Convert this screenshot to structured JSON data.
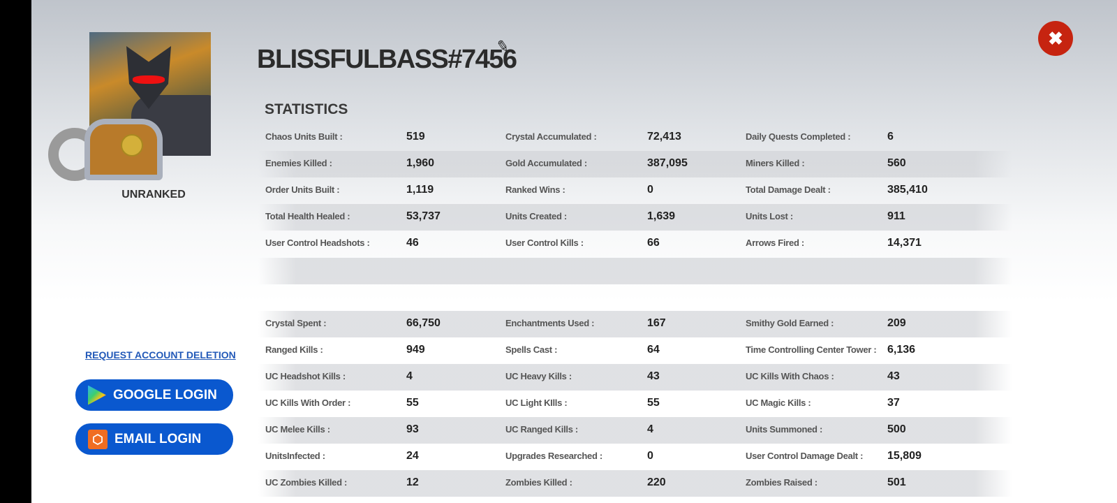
{
  "profile": {
    "name": "BLISSFULBASS#7456",
    "rank": "UNRANKED"
  },
  "statistics_heading": "STATISTICS",
  "section1": [
    [
      [
        "Chaos Units Built :",
        "519"
      ],
      [
        "Crystal Accumulated :",
        "72,413"
      ],
      [
        "Daily Quests Completed :",
        "6"
      ]
    ],
    [
      [
        "Enemies Killed :",
        "1,960"
      ],
      [
        "Gold Accumulated :",
        "387,095"
      ],
      [
        "Miners Killed :",
        "560"
      ]
    ],
    [
      [
        "Order Units Built :",
        "1,119"
      ],
      [
        "Ranked Wins :",
        "0"
      ],
      [
        "Total Damage Dealt :",
        "385,410"
      ]
    ],
    [
      [
        "Total Health Healed :",
        "53,737"
      ],
      [
        "Units Created :",
        "1,639"
      ],
      [
        "Units Lost :",
        "911"
      ]
    ],
    [
      [
        "User Control Headshots :",
        "46"
      ],
      [
        "User Control Kills :",
        "66"
      ],
      [
        "Arrows Fired :",
        "14,371"
      ]
    ]
  ],
  "section2": [
    [
      [
        "Crystal Spent :",
        "66,750"
      ],
      [
        "Enchantments Used :",
        "167"
      ],
      [
        "Smithy Gold Earned :",
        "209"
      ]
    ],
    [
      [
        "Ranged Kills :",
        "949"
      ],
      [
        "Spells Cast :",
        "64"
      ],
      [
        "Time Controlling Center Tower :",
        "6,136"
      ]
    ],
    [
      [
        "UC Headshot Kills :",
        "4"
      ],
      [
        "UC Heavy Kills :",
        "43"
      ],
      [
        "UC Kills With Chaos :",
        "43"
      ]
    ],
    [
      [
        "UC Kills With Order :",
        "55"
      ],
      [
        "UC Light KIlls :",
        "55"
      ],
      [
        "UC Magic Kills :",
        "37"
      ]
    ],
    [
      [
        "UC Melee Kills :",
        "93"
      ],
      [
        "UC Ranged Kills :",
        "4"
      ],
      [
        "Units Summoned :",
        "500"
      ]
    ],
    [
      [
        "UnitsInfected :",
        "24"
      ],
      [
        "Upgrades Researched :",
        "0"
      ],
      [
        "User Control Damage Dealt :",
        "15,809"
      ]
    ],
    [
      [
        "UC Zombies Killed :",
        "12"
      ],
      [
        "Zombies Killed :",
        "220"
      ],
      [
        "Zombies Raised :",
        "501"
      ]
    ]
  ],
  "links": {
    "delete": "REQUEST ACCOUNT DELETION",
    "google": "GOOGLE LOGIN",
    "email": "EMAIL LOGIN"
  },
  "icons": {
    "close": "✖",
    "edit": "✎",
    "email": "⬡"
  }
}
